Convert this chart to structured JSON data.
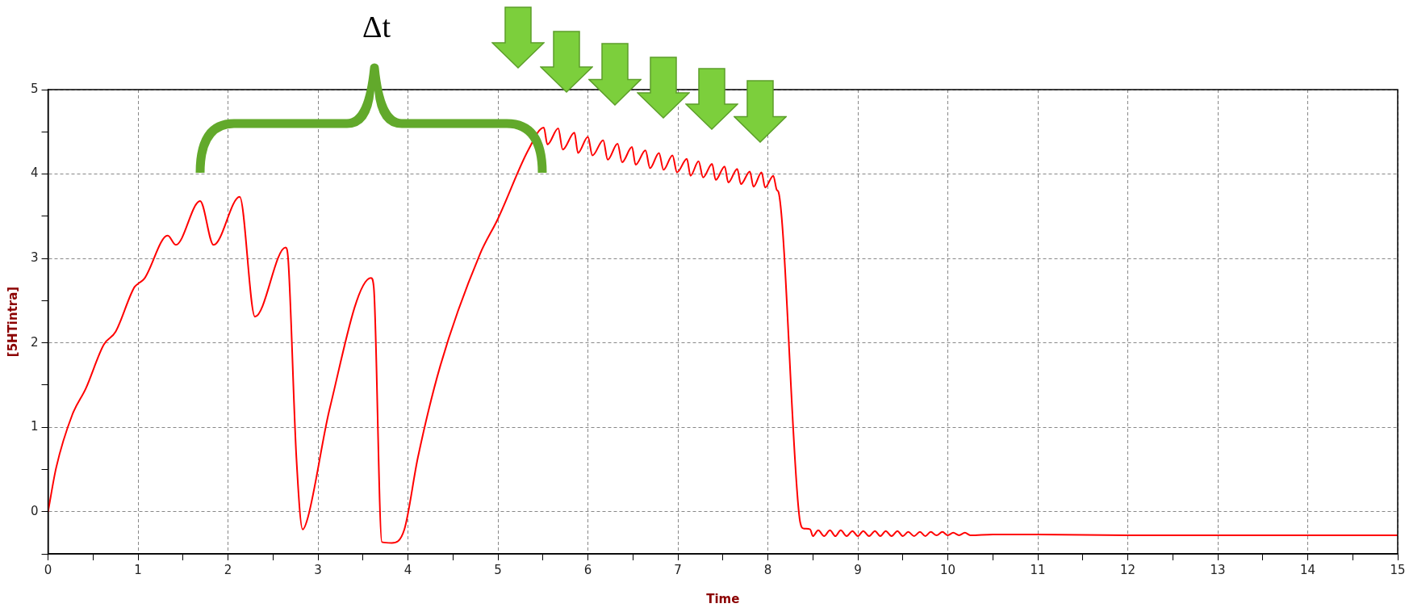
{
  "chart_data": {
    "type": "line",
    "xlabel": "Time",
    "ylabel": "[5HTintra]",
    "annotations": [
      "Δt"
    ],
    "xlim": [
      0,
      15
    ],
    "ylim": [
      -0.5,
      5
    ],
    "xticks": [
      0,
      {
        "value": 0.5,
        "label": null
      },
      1,
      {
        "value": 1.5,
        "label": null
      },
      2,
      {
        "value": 2.5,
        "label": null
      },
      3,
      {
        "value": 3.5,
        "label": null
      },
      4,
      {
        "value": 4.5,
        "label": null
      },
      5,
      {
        "value": 5.5,
        "label": null
      },
      6,
      {
        "value": 6.5,
        "label": null
      },
      7,
      {
        "value": 7.5,
        "label": null
      },
      8,
      {
        "value": 8.5,
        "label": null
      },
      9,
      {
        "value": 9.5,
        "label": null
      },
      10,
      {
        "value": 10.5,
        "label": null
      },
      11,
      {
        "value": 11.5,
        "label": null
      },
      12,
      {
        "value": 12.5,
        "label": null
      },
      13,
      {
        "value": 13.5,
        "label": null
      },
      14,
      {
        "value": 14.5,
        "label": null
      },
      15
    ],
    "yticks": [
      {
        "value": -0.5,
        "label": null
      },
      0,
      {
        "value": 0.5,
        "label": null
      },
      1,
      {
        "value": 1.5,
        "label": null
      },
      2,
      {
        "value": 2.5,
        "label": null
      },
      3,
      {
        "value": 3.5,
        "label": null
      },
      4,
      {
        "value": 4.5,
        "label": null
      },
      5
    ],
    "grid": true,
    "legend": false,
    "marker": "none",
    "line_style": "solid",
    "series": [
      {
        "color": "#ff0000",
        "x": [
          0,
          0.09,
          0.27,
          0.42,
          0.62,
          0.75,
          0.96,
          1,
          1.07,
          1.33,
          1.42,
          1.69,
          1.84,
          2.13,
          2.3,
          2.64,
          2.67,
          2.76,
          2.83,
          2.89,
          3.13,
          3.59,
          3.62,
          3.71,
          3.82,
          3.96,
          4.11,
          4.36,
          4.8,
          5,
          5.34,
          5.51,
          5.55,
          5.67,
          5.72,
          5.85,
          5.89,
          6,
          6.05,
          6.17,
          6.22,
          6.33,
          6.38,
          6.49,
          6.53,
          6.64,
          6.69,
          6.79,
          6.84,
          6.94,
          6.99,
          7.1,
          7.14,
          7.23,
          7.28,
          7.38,
          7.42,
          7.52,
          7.56,
          7.66,
          7.7,
          7.8,
          7.84,
          7.93,
          7.97,
          8.06,
          8.1,
          8.12,
          8.36,
          8.4,
          8.47,
          8.5,
          8.56,
          8.625,
          8.69,
          8.75,
          8.81,
          8.875,
          8.94,
          9,
          9.06,
          9.125,
          9.19,
          9.25,
          9.31,
          9.375,
          9.44,
          9.5,
          9.56,
          9.625,
          9.69,
          9.75,
          9.81,
          9.875,
          9.94,
          10,
          10.06,
          10.125,
          10.19,
          10.25,
          10.5,
          11,
          12,
          13,
          14,
          15
        ],
        "values": [
          0,
          0.52,
          1.15,
          1.46,
          1.98,
          2.13,
          2.66,
          2.7,
          2.76,
          3.27,
          3.16,
          3.68,
          3.16,
          3.73,
          2.31,
          3.13,
          2.97,
          0.64,
          -0.21,
          -0.06,
          1.22,
          2.77,
          2.66,
          -0.36,
          -0.37,
          -0.21,
          0.64,
          1.73,
          3.05,
          3.47,
          4.29,
          4.55,
          4.35,
          4.54,
          4.29,
          4.49,
          4.25,
          4.44,
          4.22,
          4.4,
          4.17,
          4.36,
          4.14,
          4.32,
          4.11,
          4.28,
          4.07,
          4.25,
          4.05,
          4.22,
          4.02,
          4.18,
          3.98,
          4.15,
          3.96,
          4.12,
          3.93,
          4.09,
          3.9,
          4.06,
          3.88,
          4.03,
          3.85,
          4.02,
          3.84,
          3.98,
          3.81,
          3.78,
          -0.13,
          -0.2,
          -0.21,
          -0.29,
          -0.22,
          -0.29,
          -0.22,
          -0.29,
          -0.22,
          -0.29,
          -0.23,
          -0.29,
          -0.23,
          -0.29,
          -0.23,
          -0.29,
          -0.23,
          -0.29,
          -0.23,
          -0.29,
          -0.24,
          -0.29,
          -0.24,
          -0.29,
          -0.24,
          -0.28,
          -0.24,
          -0.28,
          -0.25,
          -0.28,
          -0.25,
          -0.28,
          -0.27,
          -0.27,
          -0.28,
          -0.28,
          -0.28,
          -0.28
        ]
      }
    ]
  }
}
